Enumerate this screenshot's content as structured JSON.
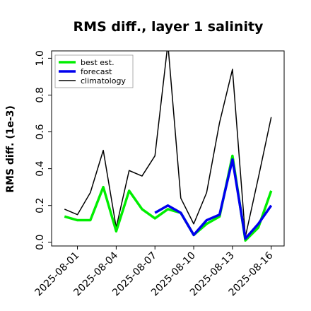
{
  "chart_data": {
    "type": "line",
    "title": "RMS diff., layer 1 salinity",
    "ylabel": "RMS diff. (1e-3)",
    "xlabel": "",
    "xlim": [
      "2025-07-30",
      "2025-08-17"
    ],
    "ylim": [
      -0.02,
      1.04
    ],
    "yticks": [
      0.0,
      0.2,
      0.4,
      0.6,
      0.8,
      1.0
    ],
    "ytick_labels": [
      "0.0",
      "0.2",
      "0.4",
      "0.6",
      "0.8",
      "1.0"
    ],
    "xticks": [
      "2025-08-01",
      "2025-08-04",
      "2025-08-07",
      "2025-08-10",
      "2025-08-13",
      "2025-08-16"
    ],
    "xtick_labels": [
      "2025-08-01",
      "2025-08-04",
      "2025-08-07",
      "2025-08-10",
      "2025-08-13",
      "2025-08-16"
    ],
    "xtick_label_colors": [
      "#000000",
      "#000000",
      "#228B22",
      "#000000",
      "#000000",
      "#000000"
    ],
    "legend_position": "top-left",
    "grid": false,
    "series": [
      {
        "name": "best est.",
        "color": "#00ee00",
        "width": 3.5,
        "x": [
          "2025-07-31",
          "2025-08-01",
          "2025-08-02",
          "2025-08-03",
          "2025-08-04",
          "2025-08-05",
          "2025-08-06",
          "2025-08-07",
          "2025-08-08",
          "2025-08-09",
          "2025-08-10",
          "2025-08-11",
          "2025-08-12",
          "2025-08-13",
          "2025-08-14",
          "2025-08-15",
          "2025-08-16"
        ],
        "values": [
          0.14,
          0.12,
          0.12,
          0.3,
          0.06,
          0.28,
          0.18,
          0.13,
          0.18,
          0.16,
          0.04,
          0.1,
          0.14,
          0.47,
          0.01,
          0.08,
          0.28
        ]
      },
      {
        "name": "forecast",
        "color": "#0000ee",
        "width": 3.5,
        "x": [
          "2025-08-07",
          "2025-08-08",
          "2025-08-09",
          "2025-08-10",
          "2025-08-11",
          "2025-08-12",
          "2025-08-13",
          "2025-08-14",
          "2025-08-15",
          "2025-08-16"
        ],
        "values": [
          0.16,
          0.2,
          0.16,
          0.04,
          0.12,
          0.15,
          0.45,
          0.02,
          0.1,
          0.2
        ]
      },
      {
        "name": "climatology",
        "color": "#000000",
        "width": 1.5,
        "x": [
          "2025-07-31",
          "2025-08-01",
          "2025-08-02",
          "2025-08-03",
          "2025-08-04",
          "2025-08-05",
          "2025-08-06",
          "2025-08-07",
          "2025-08-08",
          "2025-08-09",
          "2025-08-10",
          "2025-08-11",
          "2025-08-12",
          "2025-08-13",
          "2025-08-14",
          "2025-08-15",
          "2025-08-16"
        ],
        "values": [
          0.18,
          0.15,
          0.27,
          0.5,
          0.08,
          0.39,
          0.36,
          0.47,
          1.08,
          0.24,
          0.1,
          0.27,
          0.65,
          0.94,
          0.03,
          0.35,
          0.68
        ]
      }
    ]
  }
}
